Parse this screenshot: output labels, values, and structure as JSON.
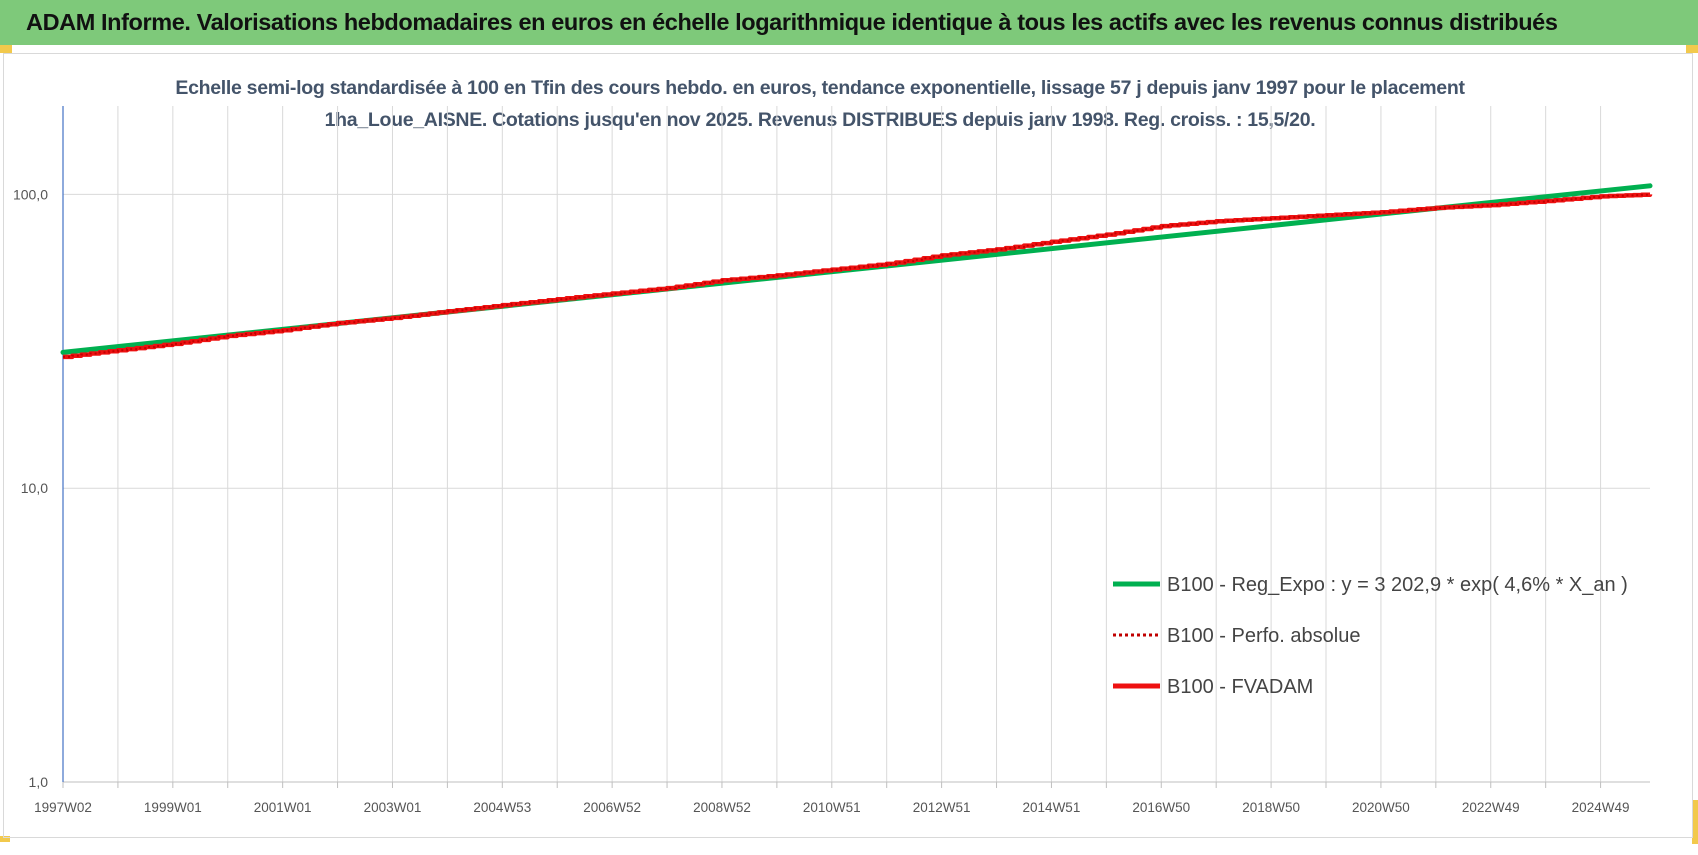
{
  "header": {
    "banner": "ADAM Informe. Valorisations hebdomadaires en euros en échelle logarithmique identique à tous les actifs avec les revenus connus distribués"
  },
  "colors": {
    "banner_bg": "#7ec97a",
    "regression": "#00b050",
    "perfo_absolue": "#c00000",
    "fvadam": "#ee1111",
    "axis": "#4472c4",
    "grid": "#d9d9d9",
    "title": "#44546a"
  },
  "chart_data": {
    "type": "line",
    "title": "Echelle semi-log standardisée à 100 en Tfin des cours hebdo. en euros, tendance exponentielle, lissage 57 j depuis janv 1997 pour le placement 1ha_Loue_AISNE. Cotations jusqu'en nov 2025. Revenus DISTRIBUES depuis janv 1998. Reg. croiss. : 15,5/20.",
    "y_scale": "log",
    "ylim": [
      1,
      200
    ],
    "y_ticks": [
      {
        "value": 1,
        "label": "1,0"
      },
      {
        "value": 10,
        "label": "10,0"
      },
      {
        "value": 100,
        "label": "100,0"
      }
    ],
    "x_range": [
      1997.0,
      2025.9
    ],
    "x_ticks": [
      {
        "pos": 1997.0,
        "label": "1997W02"
      },
      {
        "pos": 1999.0,
        "label": "1999W01"
      },
      {
        "pos": 2001.0,
        "label": "2001W01"
      },
      {
        "pos": 2003.0,
        "label": "2003W01"
      },
      {
        "pos": 2005.0,
        "label": "2004W53"
      },
      {
        "pos": 2007.0,
        "label": "2006W52"
      },
      {
        "pos": 2009.0,
        "label": "2008W52"
      },
      {
        "pos": 2011.0,
        "label": "2010W51"
      },
      {
        "pos": 2013.0,
        "label": "2012W51"
      },
      {
        "pos": 2015.0,
        "label": "2014W51"
      },
      {
        "pos": 2017.0,
        "label": "2016W50"
      },
      {
        "pos": 2019.0,
        "label": "2018W50"
      },
      {
        "pos": 2021.0,
        "label": "2020W50"
      },
      {
        "pos": 2023.0,
        "label": "2022W49"
      },
      {
        "pos": 2025.0,
        "label": "2024W49"
      }
    ],
    "grid": true,
    "legend_position": "lower-right",
    "series": [
      {
        "name": "B100 - Reg_Expo : y = 3 202,9 * exp( 4,6% *  X_an )",
        "style": "solid-thick",
        "x": [
          1997.0,
          2025.9
        ],
        "y": [
          29.0,
          107.0
        ]
      },
      {
        "name": "B100 - Perfo. absolue",
        "style": "dotted",
        "x": [
          1997.0,
          1998.0,
          1999.0,
          2000.0,
          2001.0,
          2002.0,
          2003.0,
          2004.0,
          2005.0,
          2006.0,
          2007.0,
          2008.0,
          2009.0,
          2010.0,
          2011.0,
          2012.0,
          2013.0,
          2014.0,
          2015.0,
          2016.0,
          2017.0,
          2018.0,
          2019.0,
          2020.0,
          2021.0,
          2022.0,
          2023.0,
          2024.0,
          2025.0,
          2025.9
        ],
        "y": [
          28.0,
          29.5,
          31.0,
          33.0,
          34.5,
          36.5,
          38.0,
          40.0,
          42.0,
          44.0,
          46.0,
          48.0,
          51.0,
          53.0,
          55.5,
          58.0,
          62.0,
          65.0,
          69.0,
          73.0,
          78.0,
          81.0,
          83.0,
          85.0,
          87.0,
          90.0,
          92.0,
          95.0,
          98.5,
          100.0
        ]
      },
      {
        "name": "B100 - FVADAM",
        "style": "solid-thick",
        "x": [
          1997.0,
          1998.0,
          1999.0,
          2000.0,
          2001.0,
          2002.0,
          2003.0,
          2004.0,
          2005.0,
          2006.0,
          2007.0,
          2008.0,
          2009.0,
          2010.0,
          2011.0,
          2012.0,
          2013.0,
          2014.0,
          2015.0,
          2016.0,
          2017.0,
          2018.0,
          2019.0,
          2020.0,
          2021.0,
          2022.0,
          2023.0,
          2024.0,
          2025.0,
          2025.9
        ],
        "y": [
          28.0,
          29.5,
          31.0,
          33.0,
          34.5,
          36.5,
          38.0,
          40.0,
          42.0,
          44.0,
          46.0,
          48.0,
          51.0,
          53.0,
          55.5,
          58.0,
          62.0,
          65.0,
          69.0,
          73.0,
          78.0,
          81.0,
          83.0,
          85.0,
          87.0,
          90.0,
          92.0,
          95.0,
          98.5,
          100.0
        ]
      }
    ]
  }
}
